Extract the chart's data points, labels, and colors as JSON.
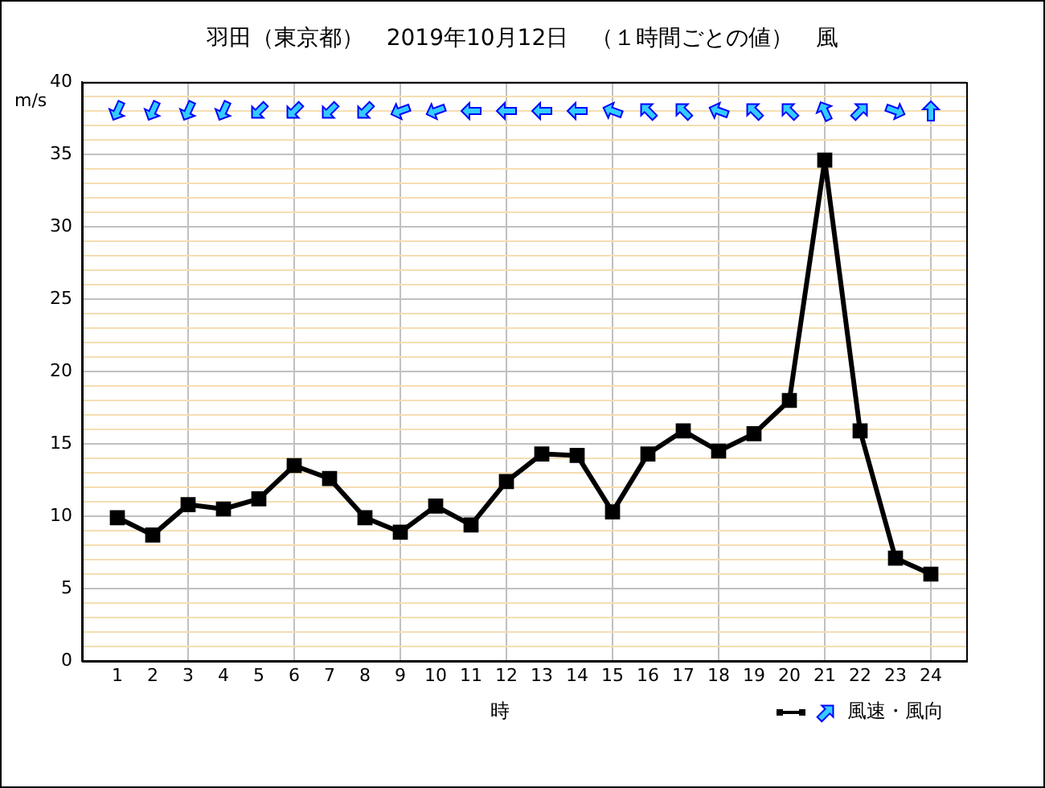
{
  "chart_data": {
    "type": "line",
    "title": "羽田（東京都）　2019年10月12日　（１時間ごとの値）　風",
    "xlabel": "時",
    "ylabel": "m/s",
    "x": [
      1,
      2,
      3,
      4,
      5,
      6,
      7,
      8,
      9,
      10,
      11,
      12,
      13,
      14,
      15,
      16,
      17,
      18,
      19,
      20,
      21,
      22,
      23,
      24
    ],
    "series": [
      {
        "name": "風速・風向",
        "color": "#000000",
        "values": [
          9.9,
          8.7,
          10.8,
          10.5,
          11.2,
          13.5,
          12.6,
          9.9,
          8.9,
          10.7,
          9.4,
          12.4,
          14.3,
          14.2,
          10.3,
          14.3,
          15.9,
          14.5,
          15.7,
          18.0,
          34.6,
          15.9,
          7.1,
          6.0
        ]
      }
    ],
    "xlim": [
      0,
      25
    ],
    "xticks": [
      1,
      2,
      3,
      4,
      5,
      6,
      7,
      8,
      9,
      10,
      11,
      12,
      13,
      14,
      15,
      16,
      17,
      18,
      19,
      20,
      21,
      22,
      23,
      24
    ],
    "ylim": [
      0,
      40
    ],
    "yticks": [
      0,
      {
        "value": 1,
        "label": null
      },
      {
        "value": 2,
        "label": null
      },
      {
        "value": 3,
        "label": null
      },
      {
        "value": 4,
        "label": null
      },
      5,
      {
        "value": 6,
        "label": null
      },
      {
        "value": 7,
        "label": null
      },
      {
        "value": 8,
        "label": null
      },
      {
        "value": 9,
        "label": null
      },
      10,
      {
        "value": 11,
        "label": null
      },
      {
        "value": 12,
        "label": null
      },
      {
        "value": 13,
        "label": null
      },
      {
        "value": 14,
        "label": null
      },
      15,
      {
        "value": 16,
        "label": null
      },
      {
        "value": 17,
        "label": null
      },
      {
        "value": 18,
        "label": null
      },
      {
        "value": 19,
        "label": null
      },
      20,
      {
        "value": 21,
        "label": null
      },
      {
        "value": 22,
        "label": null
      },
      {
        "value": 23,
        "label": null
      },
      {
        "value": 24,
        "label": null
      },
      25,
      {
        "value": 26,
        "label": null
      },
      {
        "value": 27,
        "label": null
      },
      {
        "value": 28,
        "label": null
      },
      {
        "value": 29,
        "label": null
      },
      30,
      {
        "value": 31,
        "label": null
      },
      {
        "value": 32,
        "label": null
      },
      {
        "value": 33,
        "label": null
      },
      {
        "value": 34,
        "label": null
      },
      35,
      {
        "value": 36,
        "label": null
      },
      {
        "value": 37,
        "label": null
      },
      {
        "value": 38,
        "label": null
      },
      {
        "value": 39,
        "label": null
      },
      40
    ],
    "grid": true,
    "legend": "bottom right",
    "marker": "square",
    "line_style": "solid"
  }
}
